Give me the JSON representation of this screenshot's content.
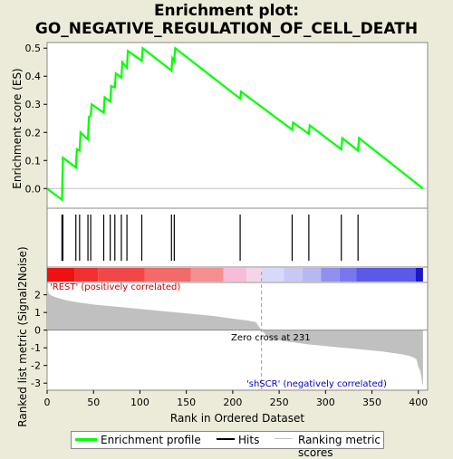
{
  "title_line1": "Enrichment plot:",
  "title_line2": "GO_NEGATIVE_REGULATION_OF_CELL_DEATH",
  "colors": {
    "enrichment": "#00ff00",
    "hits": "#000000",
    "metric_fill": "#c0c0c0",
    "zero_cross_line": "#a0a0a0",
    "positive_label": "#cc0000",
    "negative_label": "#0000cc"
  },
  "labels": {
    "es_ylabel": "Enrichment score (ES)",
    "metric_ylabel": "Ranked list metric (Signal2Noise)",
    "xlabel": "Rank in Ordered Dataset",
    "positive": "'REST' (positively correlated)",
    "negative": "'shSCR' (negatively correlated)",
    "zero_cross": "Zero cross at 231"
  },
  "legend": {
    "enrichment": "Enrichment profile",
    "hits": "Hits",
    "ranking": "Ranking metric scores"
  },
  "chart_data": [
    {
      "type": "line",
      "series": [
        {
          "name": "Enrichment profile",
          "x": [
            0,
            16,
            17,
            31,
            32,
            35,
            36,
            44,
            45,
            47,
            48,
            61,
            62,
            68,
            69,
            73,
            74,
            80,
            81,
            86,
            87,
            102,
            103,
            134,
            135,
            137,
            138,
            208,
            209,
            264,
            265,
            282,
            283,
            317,
            318,
            335,
            336,
            405
          ],
          "y": [
            0.0,
            -0.04,
            0.11,
            0.075,
            0.14,
            0.135,
            0.2,
            0.175,
            0.255,
            0.26,
            0.3,
            0.27,
            0.325,
            0.31,
            0.365,
            0.36,
            0.41,
            0.395,
            0.45,
            0.43,
            0.49,
            0.455,
            0.5,
            0.42,
            0.465,
            0.455,
            0.5,
            0.32,
            0.345,
            0.21,
            0.235,
            0.195,
            0.225,
            0.14,
            0.18,
            0.135,
            0.18,
            0.0
          ]
        }
      ],
      "ylim": [
        -0.07,
        0.52
      ],
      "yticks": [
        0.0,
        0.1,
        0.2,
        0.3,
        0.4,
        0.5
      ],
      "ytick_labels": [
        "0.0",
        "0.1",
        "0.2",
        "0.3",
        "0.4",
        "0.5"
      ],
      "xlim": [
        0,
        410
      ],
      "ylabel": "Enrichment score (ES)"
    },
    {
      "type": "hits",
      "positions": [
        16,
        17,
        31,
        35,
        44,
        47,
        61,
        68,
        73,
        80,
        86,
        102,
        134,
        137,
        208,
        264,
        282,
        317,
        335
      ],
      "xlim": [
        0,
        410
      ]
    },
    {
      "type": "heatmap",
      "segments": [
        {
          "from": 0,
          "to": 30,
          "color": "#ee1111"
        },
        {
          "from": 30,
          "to": 55,
          "color": "#f03030"
        },
        {
          "from": 55,
          "to": 105,
          "color": "#f04848"
        },
        {
          "from": 105,
          "to": 155,
          "color": "#f26a6a"
        },
        {
          "from": 155,
          "to": 190,
          "color": "#f59090"
        },
        {
          "from": 190,
          "to": 215,
          "color": "#f7bcd8"
        },
        {
          "from": 215,
          "to": 231,
          "color": "#f4d4e8"
        },
        {
          "from": 231,
          "to": 255,
          "color": "#d8d8f8"
        },
        {
          "from": 255,
          "to": 275,
          "color": "#c8c8f4"
        },
        {
          "from": 275,
          "to": 295,
          "color": "#b8b8f0"
        },
        {
          "from": 295,
          "to": 315,
          "color": "#9090ee"
        },
        {
          "from": 315,
          "to": 333,
          "color": "#7878ec"
        },
        {
          "from": 333,
          "to": 397,
          "color": "#5a5ae6"
        },
        {
          "from": 397,
          "to": 405,
          "color": "#1a1ac8"
        }
      ],
      "xlim": [
        0,
        410
      ]
    },
    {
      "type": "area",
      "x": [
        0,
        2,
        5,
        10,
        20,
        30,
        50,
        80,
        100,
        130,
        150,
        180,
        200,
        215,
        225,
        231,
        240,
        260,
        280,
        300,
        320,
        340,
        360,
        380,
        390,
        395,
        398,
        400,
        402,
        405
      ],
      "y": [
        2.4,
        2.05,
        1.95,
        1.85,
        1.7,
        1.6,
        1.45,
        1.3,
        1.2,
        1.05,
        0.95,
        0.8,
        0.65,
        0.55,
        0.45,
        0.0,
        -0.5,
        -0.65,
        -0.8,
        -0.9,
        -1.0,
        -1.1,
        -1.2,
        -1.35,
        -1.45,
        -1.55,
        -1.65,
        -2.1,
        -2.3,
        -3.2
      ],
      "ylim": [
        -3.4,
        2.7
      ],
      "yticks": [
        2,
        1,
        0,
        -1,
        -2,
        -3
      ],
      "ytick_labels": [
        "2",
        "1",
        "0",
        "-1",
        "-2",
        "-3"
      ],
      "xlim": [
        0,
        410
      ],
      "xticks": [
        0,
        50,
        100,
        150,
        200,
        250,
        300,
        350,
        400
      ],
      "xtick_labels": [
        "0",
        "50",
        "100",
        "150",
        "200",
        "250",
        "300",
        "350",
        "400"
      ],
      "zero_cross": 231,
      "xlabel": "Rank in Ordered Dataset",
      "ylabel": "Ranked list metric (Signal2Noise)"
    }
  ]
}
